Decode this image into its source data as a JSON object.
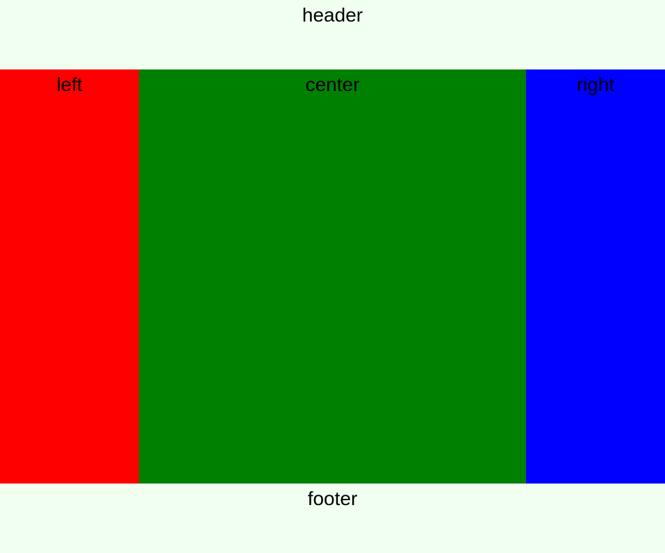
{
  "header": {
    "label": "header",
    "color": "#f0fff0"
  },
  "columns": {
    "left": {
      "label": "left",
      "color": "#ff0000"
    },
    "center": {
      "label": "center",
      "color": "#008000"
    },
    "right": {
      "label": "right",
      "color": "#0000ff"
    }
  },
  "footer": {
    "label": "footer",
    "color": "#f0fff0"
  }
}
